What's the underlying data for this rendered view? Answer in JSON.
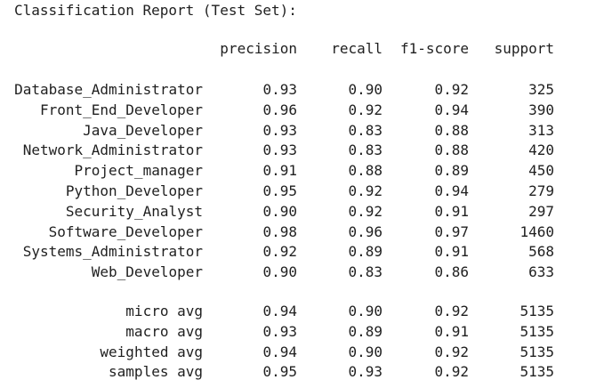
{
  "report": {
    "title": "Classification Report (Test Set):",
    "headers": {
      "precision": "precision",
      "recall": "recall",
      "f1": "f1-score",
      "support": "support"
    },
    "classes": [
      {
        "label": "Database_Administrator",
        "precision": "0.93",
        "recall": "0.90",
        "f1": "0.92",
        "support": "325"
      },
      {
        "label": "Front_End_Developer",
        "precision": "0.96",
        "recall": "0.92",
        "f1": "0.94",
        "support": "390"
      },
      {
        "label": "Java_Developer",
        "precision": "0.93",
        "recall": "0.83",
        "f1": "0.88",
        "support": "313"
      },
      {
        "label": "Network_Administrator",
        "precision": "0.93",
        "recall": "0.83",
        "f1": "0.88",
        "support": "420"
      },
      {
        "label": "Project_manager",
        "precision": "0.91",
        "recall": "0.88",
        "f1": "0.89",
        "support": "450"
      },
      {
        "label": "Python_Developer",
        "precision": "0.95",
        "recall": "0.92",
        "f1": "0.94",
        "support": "279"
      },
      {
        "label": "Security_Analyst",
        "precision": "0.90",
        "recall": "0.92",
        "f1": "0.91",
        "support": "297"
      },
      {
        "label": "Software_Developer",
        "precision": "0.98",
        "recall": "0.96",
        "f1": "0.97",
        "support": "1460"
      },
      {
        "label": "Systems_Administrator",
        "precision": "0.92",
        "recall": "0.89",
        "f1": "0.91",
        "support": "568"
      },
      {
        "label": "Web_Developer",
        "precision": "0.90",
        "recall": "0.83",
        "f1": "0.86",
        "support": "633"
      }
    ],
    "averages": [
      {
        "label": "micro avg",
        "precision": "0.94",
        "recall": "0.90",
        "f1": "0.92",
        "support": "5135"
      },
      {
        "label": "macro avg",
        "precision": "0.93",
        "recall": "0.89",
        "f1": "0.91",
        "support": "5135"
      },
      {
        "label": "weighted avg",
        "precision": "0.94",
        "recall": "0.90",
        "f1": "0.92",
        "support": "5135"
      },
      {
        "label": "samples avg",
        "precision": "0.95",
        "recall": "0.93",
        "f1": "0.92",
        "support": "5135"
      }
    ]
  }
}
